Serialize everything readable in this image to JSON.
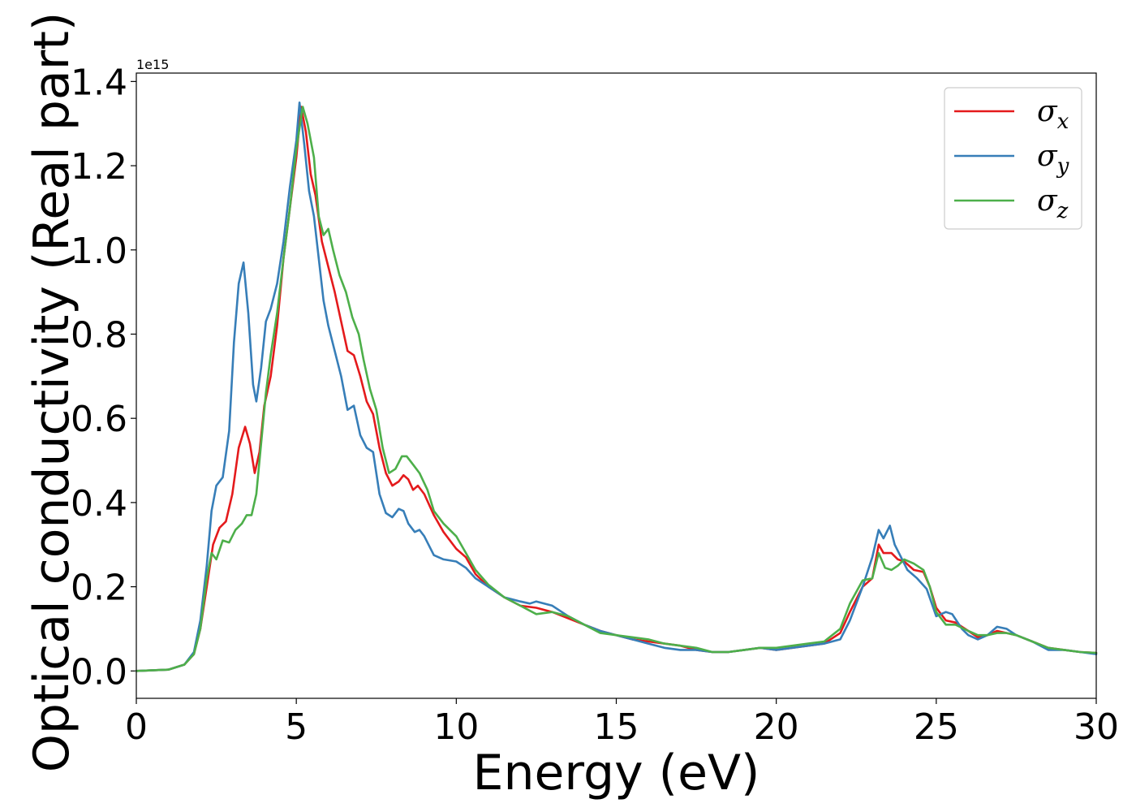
{
  "chart_data": {
    "type": "line",
    "xlabel": "Energy (eV)",
    "ylabel": "Optical conductivity (Real part)",
    "y_offset_label": "1e15",
    "xlim": [
      0,
      30
    ],
    "ylim": [
      -0.065,
      1.42
    ],
    "x_ticks": [
      0,
      5,
      10,
      15,
      20,
      25,
      30
    ],
    "x_tick_labels": [
      "0",
      "5",
      "10",
      "15",
      "20",
      "25",
      "30"
    ],
    "y_ticks": [
      0.0,
      0.2,
      0.4,
      0.6,
      0.8,
      1.0,
      1.2,
      1.4
    ],
    "y_tick_labels": [
      "0.0",
      "0.2",
      "0.4",
      "0.6",
      "0.8",
      "1.0",
      "1.2",
      "1.4"
    ],
    "grid": false,
    "legend_position": "top-right",
    "series": [
      {
        "name": "σx",
        "color": "#e41a1c",
        "points": [
          [
            0,
            0.0
          ],
          [
            1.0,
            0.003
          ],
          [
            1.5,
            0.015
          ],
          [
            1.8,
            0.04
          ],
          [
            2.0,
            0.1
          ],
          [
            2.2,
            0.2
          ],
          [
            2.4,
            0.3
          ],
          [
            2.6,
            0.34
          ],
          [
            2.8,
            0.355
          ],
          [
            3.0,
            0.42
          ],
          [
            3.2,
            0.53
          ],
          [
            3.4,
            0.58
          ],
          [
            3.55,
            0.54
          ],
          [
            3.7,
            0.47
          ],
          [
            3.85,
            0.52
          ],
          [
            4.0,
            0.63
          ],
          [
            4.2,
            0.7
          ],
          [
            4.4,
            0.82
          ],
          [
            4.6,
            0.98
          ],
          [
            4.8,
            1.1
          ],
          [
            5.0,
            1.22
          ],
          [
            5.15,
            1.34
          ],
          [
            5.3,
            1.28
          ],
          [
            5.45,
            1.18
          ],
          [
            5.6,
            1.13
          ],
          [
            5.8,
            1.02
          ],
          [
            6.0,
            0.96
          ],
          [
            6.2,
            0.9
          ],
          [
            6.4,
            0.83
          ],
          [
            6.6,
            0.76
          ],
          [
            6.8,
            0.75
          ],
          [
            7.0,
            0.7
          ],
          [
            7.2,
            0.64
          ],
          [
            7.4,
            0.61
          ],
          [
            7.6,
            0.53
          ],
          [
            7.8,
            0.47
          ],
          [
            8.0,
            0.44
          ],
          [
            8.2,
            0.45
          ],
          [
            8.35,
            0.465
          ],
          [
            8.5,
            0.455
          ],
          [
            8.65,
            0.43
          ],
          [
            8.8,
            0.44
          ],
          [
            9.0,
            0.42
          ],
          [
            9.3,
            0.37
          ],
          [
            9.6,
            0.33
          ],
          [
            10.0,
            0.29
          ],
          [
            10.3,
            0.27
          ],
          [
            10.6,
            0.23
          ],
          [
            11.0,
            0.2
          ],
          [
            11.5,
            0.175
          ],
          [
            12.0,
            0.155
          ],
          [
            12.5,
            0.15
          ],
          [
            13.0,
            0.14
          ],
          [
            13.5,
            0.125
          ],
          [
            14.0,
            0.11
          ],
          [
            14.5,
            0.095
          ],
          [
            15.0,
            0.085
          ],
          [
            15.5,
            0.075
          ],
          [
            16.0,
            0.07
          ],
          [
            16.5,
            0.065
          ],
          [
            17.0,
            0.06
          ],
          [
            17.5,
            0.05
          ],
          [
            18.0,
            0.045
          ],
          [
            18.5,
            0.045
          ],
          [
            19.0,
            0.05
          ],
          [
            19.5,
            0.055
          ],
          [
            20.0,
            0.05
          ],
          [
            20.5,
            0.055
          ],
          [
            21.0,
            0.06
          ],
          [
            21.5,
            0.065
          ],
          [
            22.0,
            0.09
          ],
          [
            22.3,
            0.14
          ],
          [
            22.7,
            0.2
          ],
          [
            23.0,
            0.22
          ],
          [
            23.2,
            0.3
          ],
          [
            23.35,
            0.28
          ],
          [
            23.6,
            0.28
          ],
          [
            23.8,
            0.265
          ],
          [
            24.0,
            0.26
          ],
          [
            24.3,
            0.24
          ],
          [
            24.6,
            0.235
          ],
          [
            24.8,
            0.2
          ],
          [
            25.0,
            0.15
          ],
          [
            25.3,
            0.12
          ],
          [
            25.6,
            0.115
          ],
          [
            26.0,
            0.095
          ],
          [
            26.3,
            0.08
          ],
          [
            26.6,
            0.085
          ],
          [
            26.9,
            0.095
          ],
          [
            27.2,
            0.09
          ],
          [
            27.5,
            0.085
          ],
          [
            28.0,
            0.07
          ],
          [
            28.5,
            0.055
          ],
          [
            29.0,
            0.05
          ],
          [
            29.5,
            0.045
          ],
          [
            30.0,
            0.043
          ]
        ]
      },
      {
        "name": "σy",
        "color": "#377eb8",
        "points": [
          [
            0,
            0.0
          ],
          [
            1.0,
            0.003
          ],
          [
            1.5,
            0.015
          ],
          [
            1.8,
            0.045
          ],
          [
            2.0,
            0.12
          ],
          [
            2.2,
            0.25
          ],
          [
            2.35,
            0.38
          ],
          [
            2.5,
            0.44
          ],
          [
            2.7,
            0.46
          ],
          [
            2.9,
            0.57
          ],
          [
            3.05,
            0.78
          ],
          [
            3.2,
            0.92
          ],
          [
            3.35,
            0.97
          ],
          [
            3.5,
            0.85
          ],
          [
            3.65,
            0.68
          ],
          [
            3.75,
            0.64
          ],
          [
            3.9,
            0.72
          ],
          [
            4.05,
            0.83
          ],
          [
            4.2,
            0.86
          ],
          [
            4.4,
            0.92
          ],
          [
            4.6,
            1.02
          ],
          [
            4.8,
            1.15
          ],
          [
            5.0,
            1.26
          ],
          [
            5.1,
            1.35
          ],
          [
            5.25,
            1.25
          ],
          [
            5.4,
            1.14
          ],
          [
            5.55,
            1.08
          ],
          [
            5.7,
            0.98
          ],
          [
            5.85,
            0.88
          ],
          [
            6.0,
            0.82
          ],
          [
            6.2,
            0.76
          ],
          [
            6.4,
            0.7
          ],
          [
            6.6,
            0.62
          ],
          [
            6.8,
            0.63
          ],
          [
            7.0,
            0.56
          ],
          [
            7.2,
            0.53
          ],
          [
            7.4,
            0.52
          ],
          [
            7.6,
            0.42
          ],
          [
            7.8,
            0.375
          ],
          [
            8.0,
            0.365
          ],
          [
            8.2,
            0.385
          ],
          [
            8.35,
            0.38
          ],
          [
            8.5,
            0.35
          ],
          [
            8.7,
            0.33
          ],
          [
            8.85,
            0.335
          ],
          [
            9.0,
            0.32
          ],
          [
            9.3,
            0.275
          ],
          [
            9.6,
            0.265
          ],
          [
            10.0,
            0.26
          ],
          [
            10.3,
            0.245
          ],
          [
            10.6,
            0.22
          ],
          [
            11.0,
            0.2
          ],
          [
            11.5,
            0.175
          ],
          [
            12.0,
            0.165
          ],
          [
            12.3,
            0.16
          ],
          [
            12.5,
            0.165
          ],
          [
            13.0,
            0.155
          ],
          [
            13.5,
            0.13
          ],
          [
            14.0,
            0.11
          ],
          [
            14.5,
            0.095
          ],
          [
            15.0,
            0.085
          ],
          [
            15.5,
            0.075
          ],
          [
            16.0,
            0.065
          ],
          [
            16.5,
            0.055
          ],
          [
            17.0,
            0.05
          ],
          [
            17.5,
            0.05
          ],
          [
            18.0,
            0.045
          ],
          [
            18.5,
            0.045
          ],
          [
            19.0,
            0.05
          ],
          [
            19.5,
            0.055
          ],
          [
            20.0,
            0.05
          ],
          [
            20.5,
            0.055
          ],
          [
            21.0,
            0.06
          ],
          [
            21.5,
            0.065
          ],
          [
            22.0,
            0.075
          ],
          [
            22.3,
            0.12
          ],
          [
            22.7,
            0.2
          ],
          [
            23.0,
            0.27
          ],
          [
            23.2,
            0.335
          ],
          [
            23.35,
            0.315
          ],
          [
            23.55,
            0.345
          ],
          [
            23.7,
            0.3
          ],
          [
            23.9,
            0.27
          ],
          [
            24.1,
            0.24
          ],
          [
            24.4,
            0.22
          ],
          [
            24.7,
            0.195
          ],
          [
            25.0,
            0.13
          ],
          [
            25.3,
            0.14
          ],
          [
            25.5,
            0.135
          ],
          [
            25.8,
            0.1
          ],
          [
            26.0,
            0.085
          ],
          [
            26.3,
            0.075
          ],
          [
            26.6,
            0.085
          ],
          [
            26.9,
            0.105
          ],
          [
            27.2,
            0.1
          ],
          [
            27.5,
            0.085
          ],
          [
            28.0,
            0.07
          ],
          [
            28.5,
            0.05
          ],
          [
            29.0,
            0.05
          ],
          [
            29.5,
            0.045
          ],
          [
            30.0,
            0.04
          ]
        ]
      },
      {
        "name": "σz",
        "color": "#4daf4a",
        "points": [
          [
            0,
            0.0
          ],
          [
            1.0,
            0.003
          ],
          [
            1.5,
            0.015
          ],
          [
            1.8,
            0.04
          ],
          [
            2.0,
            0.1
          ],
          [
            2.2,
            0.22
          ],
          [
            2.35,
            0.28
          ],
          [
            2.5,
            0.265
          ],
          [
            2.7,
            0.31
          ],
          [
            2.9,
            0.305
          ],
          [
            3.1,
            0.335
          ],
          [
            3.3,
            0.35
          ],
          [
            3.45,
            0.37
          ],
          [
            3.6,
            0.37
          ],
          [
            3.75,
            0.42
          ],
          [
            3.9,
            0.54
          ],
          [
            4.05,
            0.66
          ],
          [
            4.2,
            0.75
          ],
          [
            4.4,
            0.85
          ],
          [
            4.6,
            0.98
          ],
          [
            4.8,
            1.1
          ],
          [
            5.0,
            1.24
          ],
          [
            5.2,
            1.34
          ],
          [
            5.35,
            1.3
          ],
          [
            5.55,
            1.22
          ],
          [
            5.7,
            1.08
          ],
          [
            5.85,
            1.035
          ],
          [
            6.0,
            1.05
          ],
          [
            6.15,
            1.0
          ],
          [
            6.35,
            0.94
          ],
          [
            6.55,
            0.9
          ],
          [
            6.75,
            0.84
          ],
          [
            6.95,
            0.8
          ],
          [
            7.1,
            0.74
          ],
          [
            7.3,
            0.67
          ],
          [
            7.5,
            0.62
          ],
          [
            7.7,
            0.53
          ],
          [
            7.9,
            0.47
          ],
          [
            8.1,
            0.48
          ],
          [
            8.3,
            0.51
          ],
          [
            8.45,
            0.51
          ],
          [
            8.65,
            0.49
          ],
          [
            8.85,
            0.47
          ],
          [
            9.1,
            0.43
          ],
          [
            9.3,
            0.38
          ],
          [
            9.6,
            0.35
          ],
          [
            10.0,
            0.32
          ],
          [
            10.3,
            0.28
          ],
          [
            10.6,
            0.24
          ],
          [
            11.0,
            0.205
          ],
          [
            11.5,
            0.175
          ],
          [
            12.0,
            0.155
          ],
          [
            12.5,
            0.135
          ],
          [
            13.0,
            0.14
          ],
          [
            13.5,
            0.13
          ],
          [
            14.0,
            0.11
          ],
          [
            14.5,
            0.09
          ],
          [
            15.0,
            0.085
          ],
          [
            15.5,
            0.08
          ],
          [
            16.0,
            0.075
          ],
          [
            16.5,
            0.065
          ],
          [
            17.0,
            0.06
          ],
          [
            17.5,
            0.055
          ],
          [
            18.0,
            0.045
          ],
          [
            18.5,
            0.045
          ],
          [
            19.0,
            0.05
          ],
          [
            19.5,
            0.055
          ],
          [
            20.0,
            0.055
          ],
          [
            20.5,
            0.06
          ],
          [
            21.0,
            0.065
          ],
          [
            21.5,
            0.07
          ],
          [
            22.0,
            0.1
          ],
          [
            22.3,
            0.16
          ],
          [
            22.7,
            0.215
          ],
          [
            23.0,
            0.22
          ],
          [
            23.2,
            0.28
          ],
          [
            23.4,
            0.245
          ],
          [
            23.6,
            0.24
          ],
          [
            23.8,
            0.25
          ],
          [
            24.0,
            0.265
          ],
          [
            24.3,
            0.255
          ],
          [
            24.6,
            0.24
          ],
          [
            24.8,
            0.2
          ],
          [
            25.0,
            0.14
          ],
          [
            25.3,
            0.11
          ],
          [
            25.6,
            0.11
          ],
          [
            26.0,
            0.095
          ],
          [
            26.3,
            0.085
          ],
          [
            26.6,
            0.085
          ],
          [
            26.9,
            0.09
          ],
          [
            27.2,
            0.09
          ],
          [
            27.5,
            0.085
          ],
          [
            28.0,
            0.07
          ],
          [
            28.5,
            0.055
          ],
          [
            29.0,
            0.05
          ],
          [
            29.5,
            0.045
          ],
          [
            30.0,
            0.043
          ]
        ]
      }
    ]
  }
}
